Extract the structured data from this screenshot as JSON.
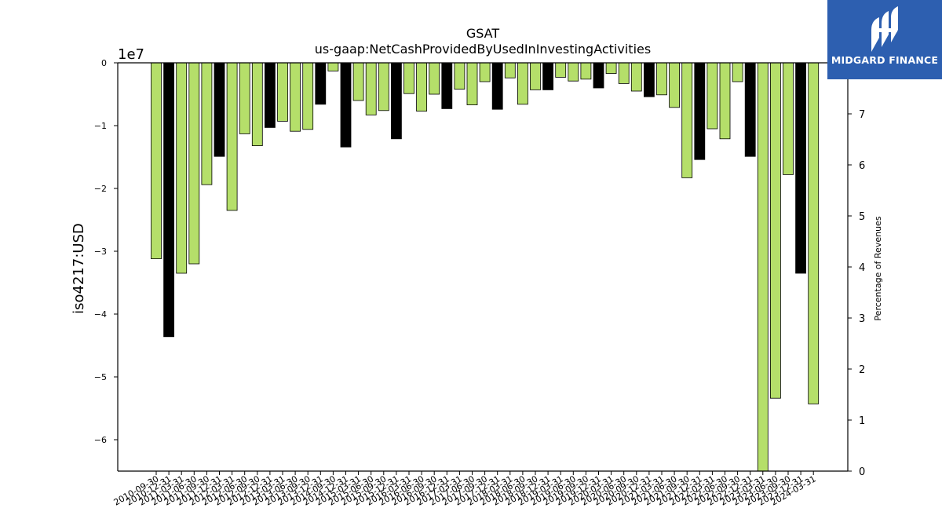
{
  "chart_data": {
    "type": "bar",
    "title": "GSAT",
    "subtitle": "us-gaap:NetCashProvidedByUsedInInvestingActivities",
    "ylabel": "iso4217:USD",
    "ylabel_right": "Percentage of Revenues",
    "offset_label": "1e7",
    "ylim": [
      -65000000,
      0
    ],
    "y_ticks": [
      0,
      -10000000,
      -20000000,
      -30000000,
      -40000000,
      -50000000,
      -60000000
    ],
    "y_tick_labels": [
      "0",
      "−1",
      "−2",
      "−3",
      "−4",
      "−5",
      "−6"
    ],
    "y2lim": [
      0,
      8
    ],
    "y2_ticks": [
      0,
      1,
      2,
      3,
      4,
      5,
      6,
      7
    ],
    "y2_tick_labels": [
      "0",
      "1",
      "2",
      "3",
      "4",
      "5",
      "6",
      "7"
    ],
    "categories": [
      "2010-09-30",
      "2010-12-31",
      "2011-03-31",
      "2011-06-30",
      "2011-09-30",
      "2011-12-31",
      "2012-03-31",
      "2012-06-30",
      "2012-09-30",
      "2012-12-31",
      "2013-03-31",
      "2013-06-30",
      "2013-09-30",
      "2013-12-31",
      "2014-09-30",
      "2014-12-31",
      "2015-03-31",
      "2015-06-30",
      "2015-09-30",
      "2015-12-31",
      "2016-03-31",
      "2016-06-30",
      "2016-09-30",
      "2016-12-31",
      "2017-03-31",
      "2017-06-30",
      "2017-09-30",
      "2017-12-31",
      "2018-03-31",
      "2018-06-30",
      "2018-09-30",
      "2018-12-31",
      "2019-03-31",
      "2019-06-30",
      "2019-09-30",
      "2019-12-31",
      "2020-03-31",
      "2020-06-30",
      "2020-09-30",
      "2020-12-31",
      "2021-03-31",
      "2021-06-30",
      "2021-09-30",
      "2021-12-31",
      "2022-03-31",
      "2022-06-30",
      "2022-09-30",
      "2022-12-31",
      "2023-03-31",
      "2023-06-30",
      "2023-09-30",
      "2023-12-31",
      "2024-03-31"
    ],
    "values": [
      -31200000,
      -43600000,
      -33500000,
      -32000000,
      -19400000,
      -14900000,
      -23500000,
      -11300000,
      -13200000,
      -10300000,
      -9300000,
      -10900000,
      -10600000,
      -6600000,
      -1300000,
      -13400000,
      -6000000,
      -8300000,
      -7600000,
      -12100000,
      -4900000,
      -7700000,
      -5000000,
      -7300000,
      -4200000,
      -6700000,
      -3000000,
      -7400000,
      -2400000,
      -6600000,
      -4300000,
      -4300000,
      -2300000,
      -2900000,
      -2600000,
      -4000000,
      -1700000,
      -3300000,
      -4500000,
      -5400000,
      -5100000,
      -7100000,
      -18300000,
      -15400000,
      -10500000,
      -12100000,
      -3000000,
      -14900000,
      -65000000,
      -53400000,
      -17800000,
      -33500000,
      -54300000
    ],
    "bar_colors": [
      "#b5df6a",
      "#000000",
      "#b5df6a",
      "#b5df6a",
      "#b5df6a",
      "#000000",
      "#b5df6a",
      "#b5df6a",
      "#b5df6a",
      "#000000",
      "#b5df6a",
      "#b5df6a",
      "#b5df6a",
      "#000000",
      "#b5df6a",
      "#000000",
      "#b5df6a",
      "#b5df6a",
      "#b5df6a",
      "#000000",
      "#b5df6a",
      "#b5df6a",
      "#b5df6a",
      "#000000",
      "#b5df6a",
      "#b5df6a",
      "#b5df6a",
      "#000000",
      "#b5df6a",
      "#b5df6a",
      "#b5df6a",
      "#000000",
      "#b5df6a",
      "#b5df6a",
      "#b5df6a",
      "#000000",
      "#b5df6a",
      "#b5df6a",
      "#b5df6a",
      "#000000",
      "#b5df6a",
      "#b5df6a",
      "#b5df6a",
      "#000000",
      "#b5df6a",
      "#b5df6a",
      "#b5df6a",
      "#000000",
      "#b5df6a",
      "#b5df6a",
      "#b5df6a",
      "#000000",
      "#b5df6a"
    ],
    "grid": false,
    "legend": "none"
  },
  "brand": {
    "name": "MIDGARD FINANCE",
    "icon": "midgard-logo-icon",
    "color": "#2d5fb0"
  }
}
